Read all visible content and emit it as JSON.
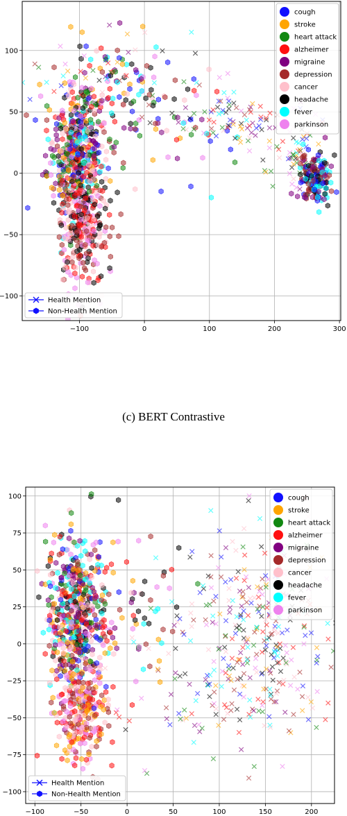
{
  "caption": "(c) BERT Contrastive",
  "class_colors": {
    "cough": "#1010ff",
    "stroke": "#ffa500",
    "heart attack": "#118811",
    "alzheimer": "#ff1010",
    "migraine": "#800080",
    "depression": "#a52a2a",
    "cancer": "#ffc0cb",
    "headache": "#000000",
    "fever": "#00ffff",
    "parkinson": "#ee82ee"
  },
  "chart_data": [
    {
      "type": "scatter",
      "title": "",
      "xlabel": "",
      "ylabel": "",
      "xlim": [
        -188,
        302
      ],
      "ylim": [
        -120,
        140
      ],
      "xticks": [
        -100,
        0,
        100,
        200,
        300
      ],
      "yticks": [
        -100,
        -50,
        0,
        50,
        100
      ],
      "grid": true,
      "class_legend": [
        "cough",
        "stroke",
        "heart attack",
        "alzheimer",
        "migraine",
        "depression",
        "cancer",
        "headache",
        "fever",
        "parkinson"
      ],
      "class_legend_position": "top-right",
      "marker_legend": [
        {
          "label": "Health Mention",
          "marker": "x"
        },
        {
          "label": "Non-Health Mention",
          "marker": "hexagon"
        }
      ],
      "marker_legend_position": "bottom-left",
      "clusters": [
        {
          "marker": "hexagon",
          "cx": -105,
          "cy": 15,
          "sx": 22,
          "sy": 28,
          "n": 520,
          "classes": "all"
        },
        {
          "marker": "hexagon",
          "cx": -95,
          "cy": -45,
          "sx": 20,
          "sy": 22,
          "n": 260,
          "classes": [
            "alzheimer",
            "cancer",
            "parkinson",
            "depression",
            "headache"
          ]
        },
        {
          "marker": "hexagon",
          "cx": -40,
          "cy": 70,
          "sx": 35,
          "sy": 20,
          "n": 80,
          "classes": "all"
        },
        {
          "marker": "hexagon",
          "cx": 40,
          "cy": 40,
          "sx": 60,
          "sy": 25,
          "n": 60,
          "classes": "all"
        },
        {
          "marker": "x",
          "cx": 150,
          "cy": 45,
          "sx": 60,
          "sy": 12,
          "n": 90,
          "classes": "all"
        },
        {
          "marker": "x",
          "cx": 235,
          "cy": 18,
          "sx": 20,
          "sy": 12,
          "n": 60,
          "classes": "all"
        },
        {
          "marker": "hexagon",
          "cx": 262,
          "cy": -5,
          "sx": 12,
          "sy": 10,
          "n": 160,
          "classes": [
            "fever",
            "cough",
            "headache",
            "migraine",
            "depression"
          ]
        },
        {
          "marker": "x",
          "cx": -60,
          "cy": 80,
          "sx": 60,
          "sy": 20,
          "n": 40,
          "classes": "all"
        }
      ]
    },
    {
      "type": "scatter",
      "title": "",
      "xlabel": "",
      "ylabel": "",
      "xlim": [
        -110,
        225
      ],
      "ylim": [
        -108,
        106
      ],
      "xticks": [
        -100,
        -50,
        0,
        50,
        100,
        150,
        200
      ],
      "yticks": [
        -100,
        -75,
        -50,
        -25,
        0,
        25,
        50,
        75,
        100
      ],
      "grid": true,
      "class_legend": [
        "cough",
        "stroke",
        "heart attack",
        "alzheimer",
        "migraine",
        "depression",
        "cancer",
        "headache",
        "fever",
        "parkinson"
      ],
      "class_legend_position": "top-right",
      "marker_legend": [
        {
          "label": "Health Mention",
          "marker": "x"
        },
        {
          "label": "Non-Health Mention",
          "marker": "hexagon"
        }
      ],
      "marker_legend_position": "bottom-left",
      "clusters": [
        {
          "marker": "hexagon",
          "cx": -55,
          "cy": 20,
          "sx": 16,
          "sy": 28,
          "n": 520,
          "classes": "all"
        },
        {
          "marker": "hexagon",
          "cx": -50,
          "cy": -45,
          "sx": 14,
          "sy": 18,
          "n": 260,
          "classes": [
            "alzheimer",
            "cancer",
            "parkinson",
            "depression",
            "stroke"
          ]
        },
        {
          "marker": "hexagon",
          "cx": 5,
          "cy": 20,
          "sx": 30,
          "sy": 30,
          "n": 70,
          "classes": "all"
        },
        {
          "marker": "x",
          "cx": 145,
          "cy": 5,
          "sx": 38,
          "sy": 35,
          "n": 330,
          "classes": "all"
        },
        {
          "marker": "x",
          "cx": 60,
          "cy": -20,
          "sx": 40,
          "sy": 35,
          "n": 60,
          "classes": "all"
        }
      ]
    }
  ]
}
